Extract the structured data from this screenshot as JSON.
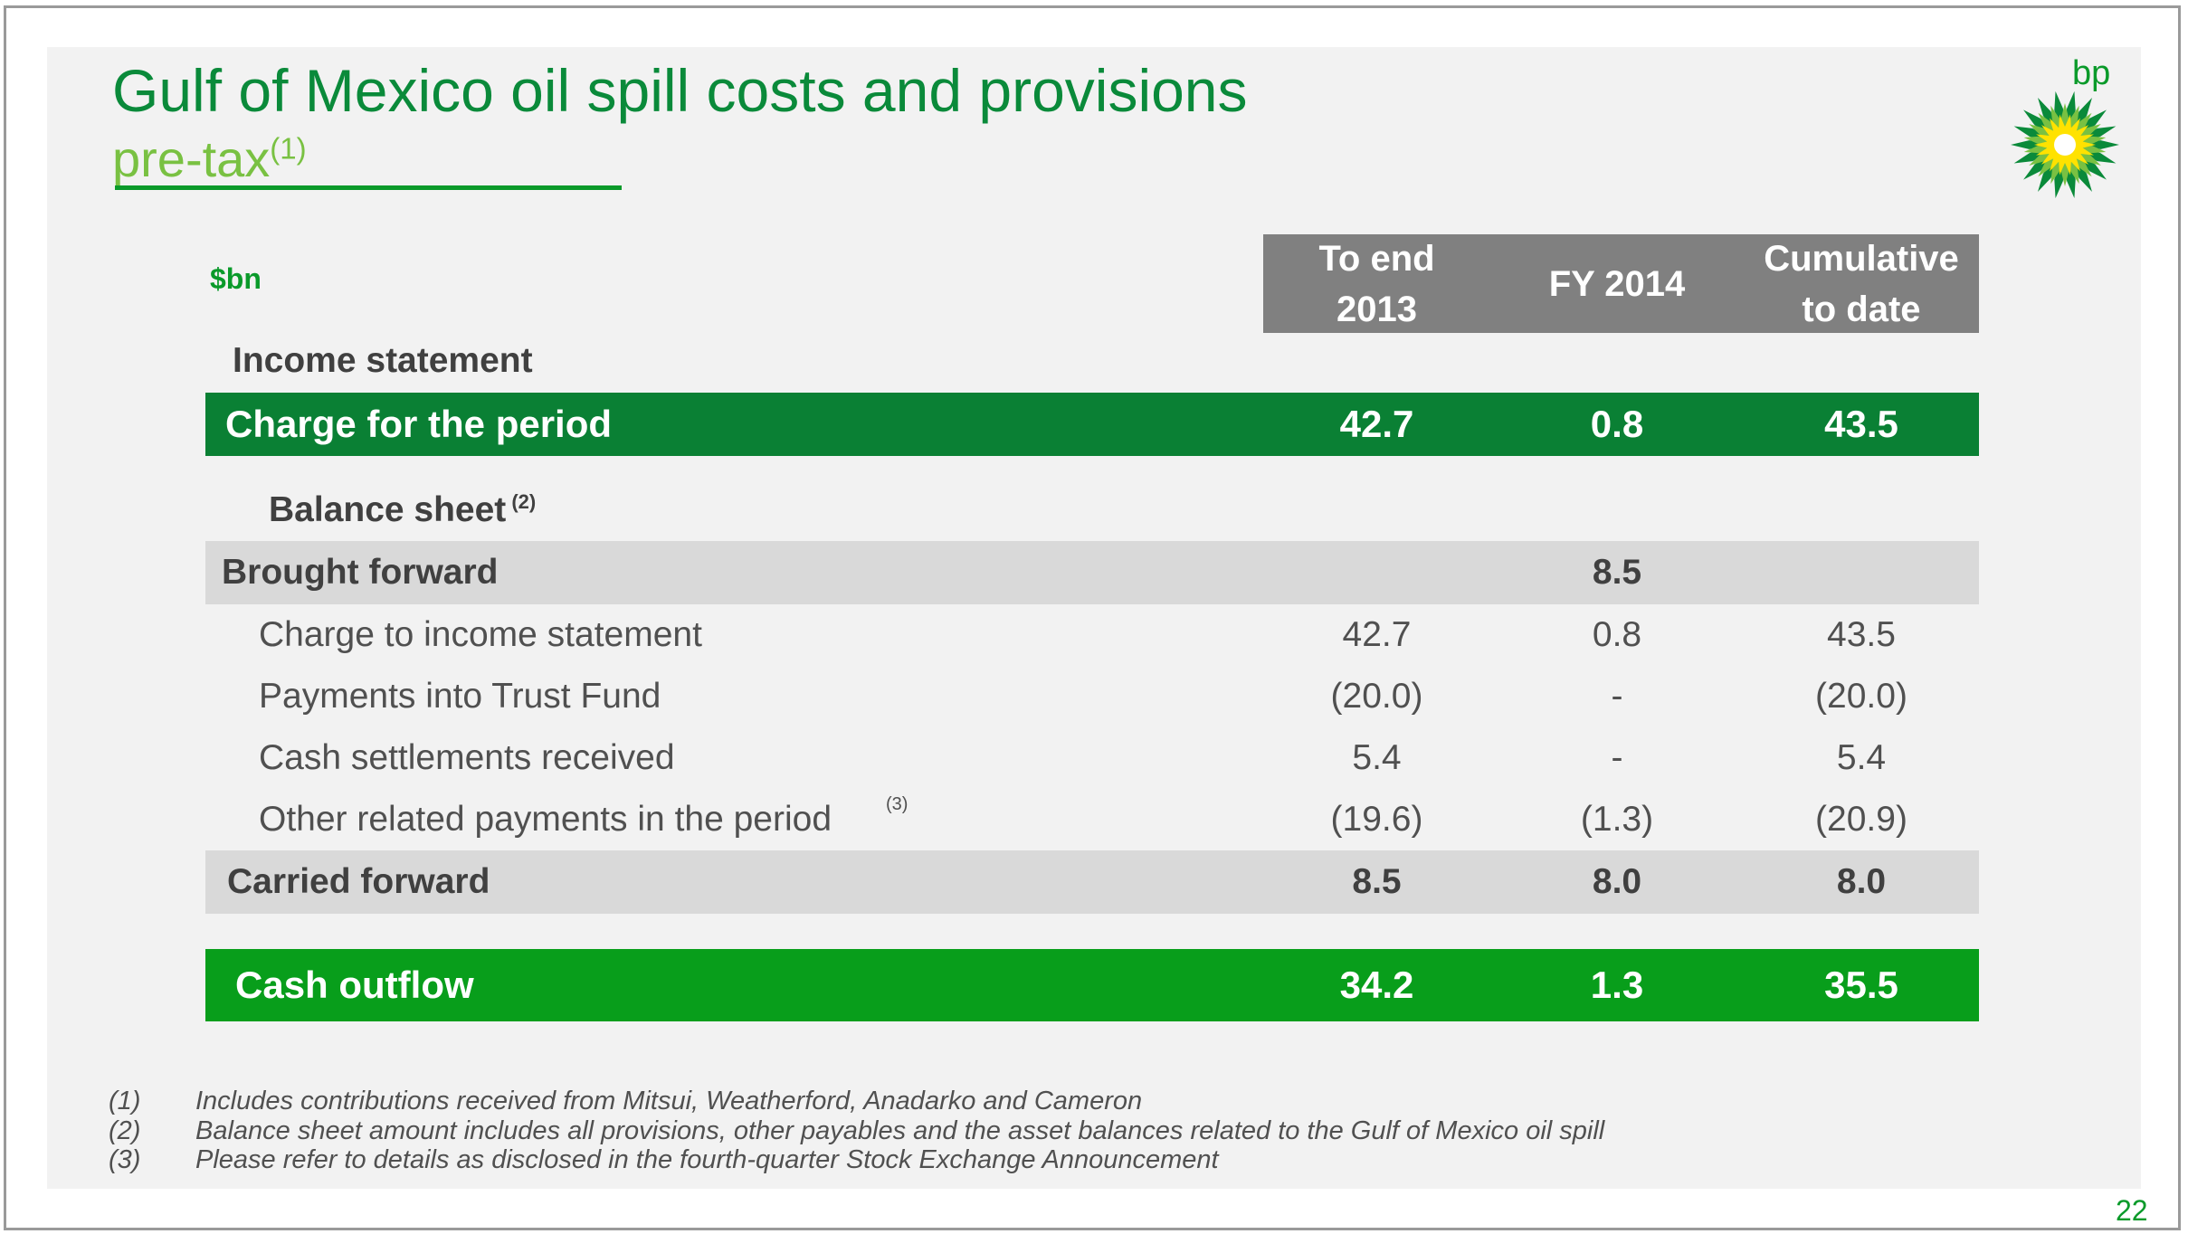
{
  "slide": {
    "title": "Gulf of Mexico oil spill costs and provisions",
    "subtitle": "pre-tax",
    "subtitle_note": "(1)",
    "logo_text": "bp",
    "logo_icon": "bp-helios-sun-icon",
    "page_number": "22",
    "colors": {
      "dark_green": "#0a8034",
      "bright_green": "#089e1b",
      "grey_header": "#808080",
      "grey_band": "#d9d9d9"
    }
  },
  "table": {
    "unit": "$bn",
    "columns": [
      "To end\n2013",
      "FY 2014",
      "Cumulative\nto date"
    ],
    "sections": {
      "income_statement": "Income statement",
      "balance_sheet": "Balance sheet",
      "balance_sheet_note": "(2)"
    },
    "charge_row": {
      "label": "Charge for the period",
      "v1": "42.7",
      "v2": "0.8",
      "v3": "43.5"
    },
    "brought_forward": {
      "label": "Brought forward",
      "v2": "8.5"
    },
    "rows": [
      {
        "label": "Charge to income statement",
        "v1": "42.7",
        "v2": "0.8",
        "v3": "43.5"
      },
      {
        "label": "Payments into Trust Fund",
        "v1": "(20.0)",
        "v2": "-",
        "v3": "(20.0)"
      },
      {
        "label": "Cash settlements received",
        "v1": "5.4",
        "v2": "-",
        "v3": "5.4"
      },
      {
        "label": "Other related payments in the period",
        "note": "(3)",
        "v1": "(19.6)",
        "v2": "(1.3)",
        "v3": "(20.9)"
      }
    ],
    "carried_forward": {
      "label": "Carried forward",
      "v1": "8.5",
      "v2": "8.0",
      "v3": "8.0"
    },
    "cash_outflow": {
      "label": "Cash outflow",
      "v1": "34.2",
      "v2": "1.3",
      "v3": "35.5"
    }
  },
  "footnotes": [
    {
      "num": "(1)",
      "text": "Includes contributions received from Mitsui, Weatherford, Anadarko and Cameron"
    },
    {
      "num": "(2)",
      "text": "Balance sheet amount includes all provisions, other payables and the asset balances related to the Gulf of Mexico oil spill"
    },
    {
      "num": "(3)",
      "text": "Please refer to details as disclosed in the fourth-quarter Stock Exchange Announcement"
    }
  ]
}
